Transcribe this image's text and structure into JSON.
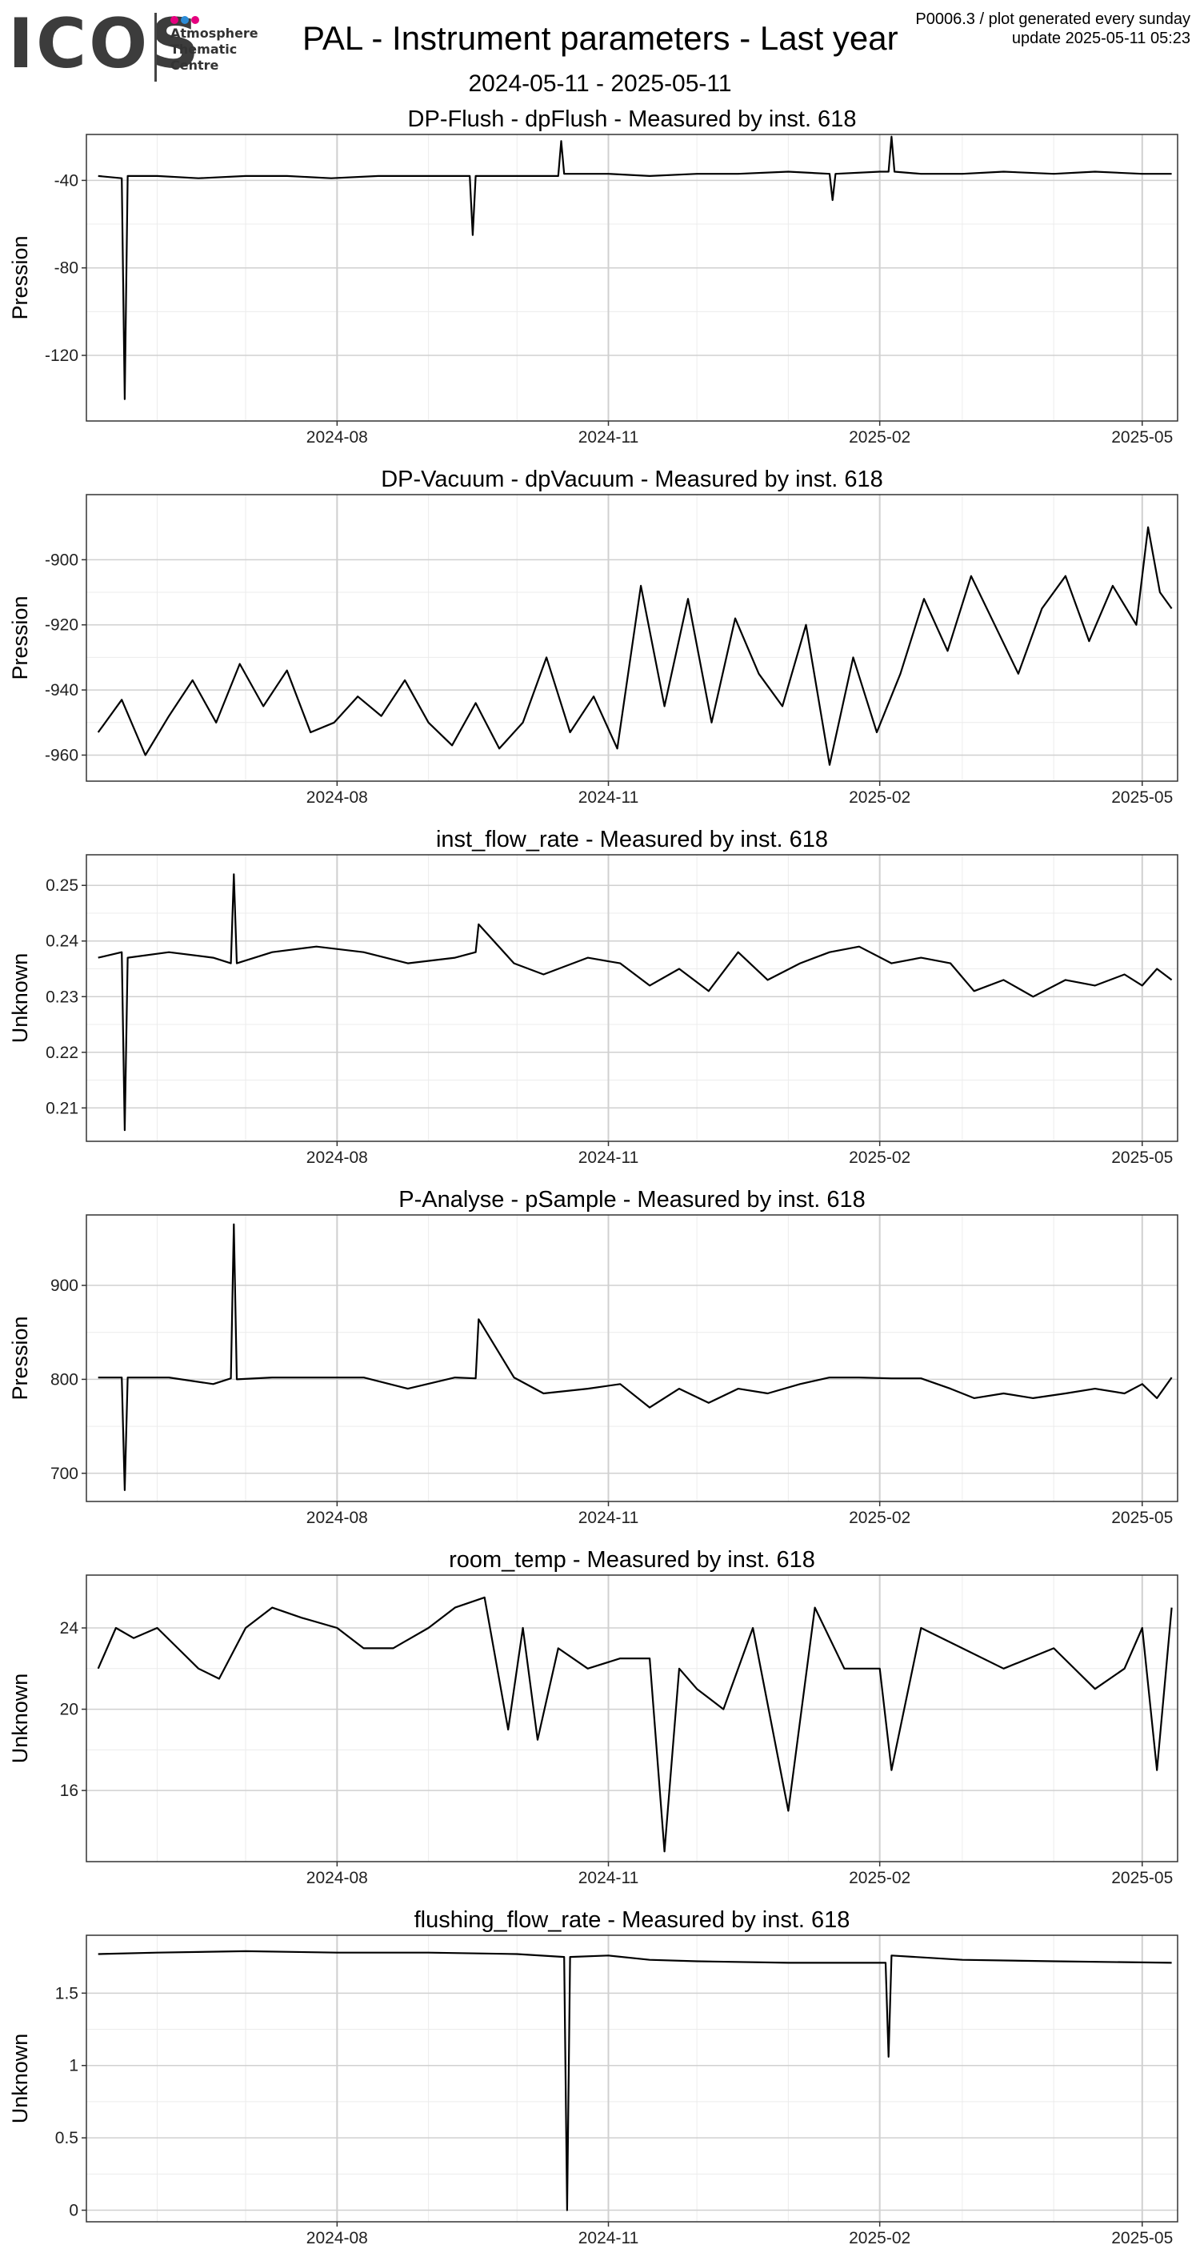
{
  "header": {
    "logo": "ICOS",
    "logo_subtitle": "Atmosphere\nThematic\nCentre",
    "logo_dot_colors": [
      "#e5007e",
      "#2b8bd6",
      "#e5007e"
    ],
    "title": "PAL - Instrument parameters - Last year",
    "date_range": "2024-05-11 - 2025-05-11",
    "meta_line1": "P0006.3 / plot generated every sunday",
    "meta_line2": "update  2025-05-11 05:23"
  },
  "style": {
    "line_color": "#000000",
    "grid_major": "#d0d0d0",
    "grid_minor": "#ececec",
    "panel_border": "#333333"
  },
  "chart_data": [
    {
      "type": "line",
      "title": "DP-Flush - dpFlush - Measured by inst. 618",
      "xlabel": "",
      "ylabel": "Pression",
      "xlim": [
        "2024-05-08",
        "2025-05-13"
      ],
      "ylim": [
        -150,
        -19
      ],
      "yticks": [
        -40,
        -80,
        -120
      ],
      "xticks": [
        "2024-08-01",
        "2024-11-01",
        "2025-02-01",
        "2025-05-01"
      ],
      "xtick_labels": [
        "2024-08",
        "2024-11",
        "2025-02",
        "2025-05"
      ],
      "x": [
        "2024-05-12",
        "2024-05-20",
        "2024-05-21",
        "2024-05-22",
        "2024-06-01",
        "2024-06-15",
        "2024-07-01",
        "2024-07-15",
        "2024-07-30",
        "2024-08-15",
        "2024-09-01",
        "2024-09-15",
        "2024-09-16",
        "2024-09-17",
        "2024-10-01",
        "2024-10-15",
        "2024-10-16",
        "2024-10-17",
        "2024-11-01",
        "2024-11-15",
        "2024-12-01",
        "2024-12-15",
        "2025-01-01",
        "2025-01-15",
        "2025-01-16",
        "2025-01-17",
        "2025-02-01",
        "2025-02-04",
        "2025-02-05",
        "2025-02-06",
        "2025-02-15",
        "2025-03-01",
        "2025-03-15",
        "2025-04-01",
        "2025-04-15",
        "2025-05-01",
        "2025-05-11"
      ],
      "y": [
        -38,
        -39,
        -140,
        -38,
        -38,
        -39,
        -38,
        -38,
        -39,
        -38,
        -38,
        -38,
        -65,
        -38,
        -38,
        -38,
        -22,
        -37,
        -37,
        -38,
        -37,
        -37,
        -36,
        -37,
        -49,
        -37,
        -36,
        -36,
        -20,
        -36,
        -37,
        -37,
        -36,
        -37,
        -36,
        -37,
        -37
      ]
    },
    {
      "type": "line",
      "title": "DP-Vacuum - dpVacuum - Measured by inst. 618",
      "xlabel": "",
      "ylabel": "Pression",
      "xlim": [
        "2024-05-08",
        "2025-05-13"
      ],
      "ylim": [
        -968,
        -880
      ],
      "yticks": [
        -900,
        -920,
        -940,
        -960
      ],
      "xticks": [
        "2024-08-01",
        "2024-11-01",
        "2025-02-01",
        "2025-05-01"
      ],
      "xtick_labels": [
        "2024-08",
        "2024-11",
        "2025-02",
        "2025-05"
      ],
      "x": [
        "2024-05-12",
        "2024-05-20",
        "2024-05-28",
        "2024-06-05",
        "2024-06-13",
        "2024-06-21",
        "2024-06-29",
        "2024-07-07",
        "2024-07-15",
        "2024-07-23",
        "2024-07-31",
        "2024-08-08",
        "2024-08-16",
        "2024-08-24",
        "2024-09-01",
        "2024-09-09",
        "2024-09-17",
        "2024-09-25",
        "2024-10-03",
        "2024-10-11",
        "2024-10-19",
        "2024-10-27",
        "2024-11-04",
        "2024-11-12",
        "2024-11-20",
        "2024-11-28",
        "2024-12-06",
        "2024-12-14",
        "2024-12-22",
        "2024-12-30",
        "2025-01-07",
        "2025-01-15",
        "2025-01-23",
        "2025-01-31",
        "2025-02-08",
        "2025-02-16",
        "2025-02-24",
        "2025-03-04",
        "2025-03-12",
        "2025-03-20",
        "2025-03-28",
        "2025-04-05",
        "2025-04-13",
        "2025-04-21",
        "2025-04-29",
        "2025-05-03",
        "2025-05-07",
        "2025-05-11"
      ],
      "y": [
        -953,
        -943,
        -960,
        -948,
        -937,
        -950,
        -932,
        -945,
        -934,
        -953,
        -950,
        -942,
        -948,
        -937,
        -950,
        -957,
        -944,
        -958,
        -950,
        -930,
        -953,
        -942,
        -958,
        -908,
        -945,
        -912,
        -950,
        -918,
        -935,
        -945,
        -920,
        -963,
        -930,
        -953,
        -935,
        -912,
        -928,
        -905,
        -920,
        -935,
        -915,
        -905,
        -925,
        -908,
        -920,
        -890,
        -910,
        -915
      ]
    },
    {
      "type": "line",
      "title": "inst_flow_rate - Measured by inst. 618",
      "xlabel": "",
      "ylabel": "Unknown",
      "xlim": [
        "2024-05-08",
        "2025-05-13"
      ],
      "ylim": [
        0.204,
        0.2555
      ],
      "yticks": [
        0.21,
        0.22,
        0.23,
        0.24,
        0.25
      ],
      "xticks": [
        "2024-08-01",
        "2024-11-01",
        "2025-02-01",
        "2025-05-01"
      ],
      "xtick_labels": [
        "2024-08",
        "2024-11",
        "2025-02",
        "2025-05"
      ],
      "x": [
        "2024-05-12",
        "2024-05-20",
        "2024-05-21",
        "2024-05-22",
        "2024-06-05",
        "2024-06-20",
        "2024-06-26",
        "2024-06-27",
        "2024-06-28",
        "2024-07-10",
        "2024-07-25",
        "2024-08-10",
        "2024-08-25",
        "2024-09-10",
        "2024-09-17",
        "2024-09-18",
        "2024-09-30",
        "2024-10-10",
        "2024-10-25",
        "2024-11-05",
        "2024-11-15",
        "2024-11-25",
        "2024-12-05",
        "2024-12-15",
        "2024-12-25",
        "2025-01-05",
        "2025-01-15",
        "2025-01-25",
        "2025-02-05",
        "2025-02-15",
        "2025-02-25",
        "2025-03-05",
        "2025-03-15",
        "2025-03-25",
        "2025-04-05",
        "2025-04-15",
        "2025-04-25",
        "2025-05-01",
        "2025-05-06",
        "2025-05-11"
      ],
      "y": [
        0.237,
        0.238,
        0.206,
        0.237,
        0.238,
        0.237,
        0.236,
        0.252,
        0.236,
        0.238,
        0.239,
        0.238,
        0.236,
        0.237,
        0.238,
        0.243,
        0.236,
        0.234,
        0.237,
        0.236,
        0.232,
        0.235,
        0.231,
        0.238,
        0.233,
        0.236,
        0.238,
        0.239,
        0.236,
        0.237,
        0.236,
        0.231,
        0.233,
        0.23,
        0.233,
        0.232,
        0.234,
        0.232,
        0.235,
        0.233
      ]
    },
    {
      "type": "line",
      "title": "P-Analyse - pSample - Measured by inst. 618",
      "xlabel": "",
      "ylabel": "Pression",
      "xlim": [
        "2024-05-08",
        "2025-05-13"
      ],
      "ylim": [
        670,
        975
      ],
      "yticks": [
        700,
        800,
        900
      ],
      "xticks": [
        "2024-08-01",
        "2024-11-01",
        "2025-02-01",
        "2025-05-01"
      ],
      "xtick_labels": [
        "2024-08",
        "2024-11",
        "2025-02",
        "2025-05"
      ],
      "x": [
        "2024-05-12",
        "2024-05-20",
        "2024-05-21",
        "2024-05-22",
        "2024-06-05",
        "2024-06-20",
        "2024-06-26",
        "2024-06-27",
        "2024-06-28",
        "2024-07-10",
        "2024-07-25",
        "2024-08-10",
        "2024-08-25",
        "2024-09-10",
        "2024-09-17",
        "2024-09-18",
        "2024-09-30",
        "2024-10-10",
        "2024-10-25",
        "2024-11-05",
        "2024-11-15",
        "2024-11-25",
        "2024-12-05",
        "2024-12-15",
        "2024-12-25",
        "2025-01-05",
        "2025-01-15",
        "2025-01-25",
        "2025-02-05",
        "2025-02-15",
        "2025-02-25",
        "2025-03-05",
        "2025-03-15",
        "2025-03-25",
        "2025-04-05",
        "2025-04-15",
        "2025-04-25",
        "2025-05-01",
        "2025-05-06",
        "2025-05-11"
      ],
      "y": [
        802,
        802,
        682,
        802,
        802,
        795,
        801,
        965,
        800,
        802,
        802,
        802,
        790,
        802,
        801,
        864,
        802,
        785,
        790,
        795,
        770,
        790,
        775,
        790,
        785,
        795,
        802,
        802,
        801,
        801,
        790,
        780,
        785,
        780,
        785,
        790,
        785,
        795,
        780,
        802
      ]
    },
    {
      "type": "line",
      "title": "room_temp - Measured by inst. 618",
      "xlabel": "",
      "ylabel": "Unknown",
      "xlim": [
        "2024-05-08",
        "2025-05-13"
      ],
      "ylim": [
        12.5,
        26.6
      ],
      "yticks": [
        16,
        20,
        24
      ],
      "xticks": [
        "2024-08-01",
        "2024-11-01",
        "2025-02-01",
        "2025-05-01"
      ],
      "xtick_labels": [
        "2024-08",
        "2024-11",
        "2025-02",
        "2025-05"
      ],
      "x": [
        "2024-05-12",
        "2024-05-18",
        "2024-05-24",
        "2024-06-01",
        "2024-06-08",
        "2024-06-15",
        "2024-06-22",
        "2024-07-01",
        "2024-07-10",
        "2024-07-20",
        "2024-08-01",
        "2024-08-10",
        "2024-08-20",
        "2024-09-01",
        "2024-09-10",
        "2024-09-20",
        "2024-09-28",
        "2024-10-03",
        "2024-10-08",
        "2024-10-15",
        "2024-10-25",
        "2024-11-05",
        "2024-11-15",
        "2024-11-20",
        "2024-11-25",
        "2024-12-01",
        "2024-12-10",
        "2024-12-20",
        "2025-01-01",
        "2025-01-10",
        "2025-01-20",
        "2025-02-01",
        "2025-02-05",
        "2025-02-15",
        "2025-03-01",
        "2025-03-15",
        "2025-04-01",
        "2025-04-15",
        "2025-04-25",
        "2025-05-01",
        "2025-05-06",
        "2025-05-11"
      ],
      "y": [
        22,
        24,
        23.5,
        24,
        23,
        22,
        21.5,
        24,
        25,
        24.5,
        24,
        23,
        23,
        24,
        25,
        25.5,
        19,
        24,
        18.5,
        23,
        22,
        22.5,
        22.5,
        13,
        22,
        21,
        20,
        24,
        15,
        25,
        22,
        22,
        17,
        24,
        23,
        22,
        23,
        21,
        22,
        24,
        17,
        25
      ]
    },
    {
      "type": "line",
      "title": "flushing_flow_rate - Measured by inst. 618",
      "xlabel": "",
      "ylabel": "Unknown",
      "xlim": [
        "2024-05-08",
        "2025-05-13"
      ],
      "ylim": [
        -0.08,
        1.9
      ],
      "yticks": [
        0.0,
        0.5,
        1.0,
        1.5
      ],
      "xticks": [
        "2024-08-01",
        "2024-11-01",
        "2025-02-01",
        "2025-05-01"
      ],
      "xtick_labels": [
        "2024-08",
        "2024-11",
        "2025-02",
        "2025-05"
      ],
      "x": [
        "2024-05-12",
        "2024-06-01",
        "2024-07-01",
        "2024-08-01",
        "2024-09-01",
        "2024-10-01",
        "2024-10-17",
        "2024-10-18",
        "2024-10-19",
        "2024-11-01",
        "2024-11-15",
        "2024-12-01",
        "2025-01-01",
        "2025-02-03",
        "2025-02-04",
        "2025-02-05",
        "2025-03-01",
        "2025-04-01",
        "2025-05-11"
      ],
      "y": [
        1.77,
        1.78,
        1.79,
        1.78,
        1.78,
        1.77,
        1.75,
        0.0,
        1.75,
        1.76,
        1.73,
        1.72,
        1.71,
        1.71,
        1.06,
        1.76,
        1.73,
        1.72,
        1.71
      ]
    }
  ]
}
